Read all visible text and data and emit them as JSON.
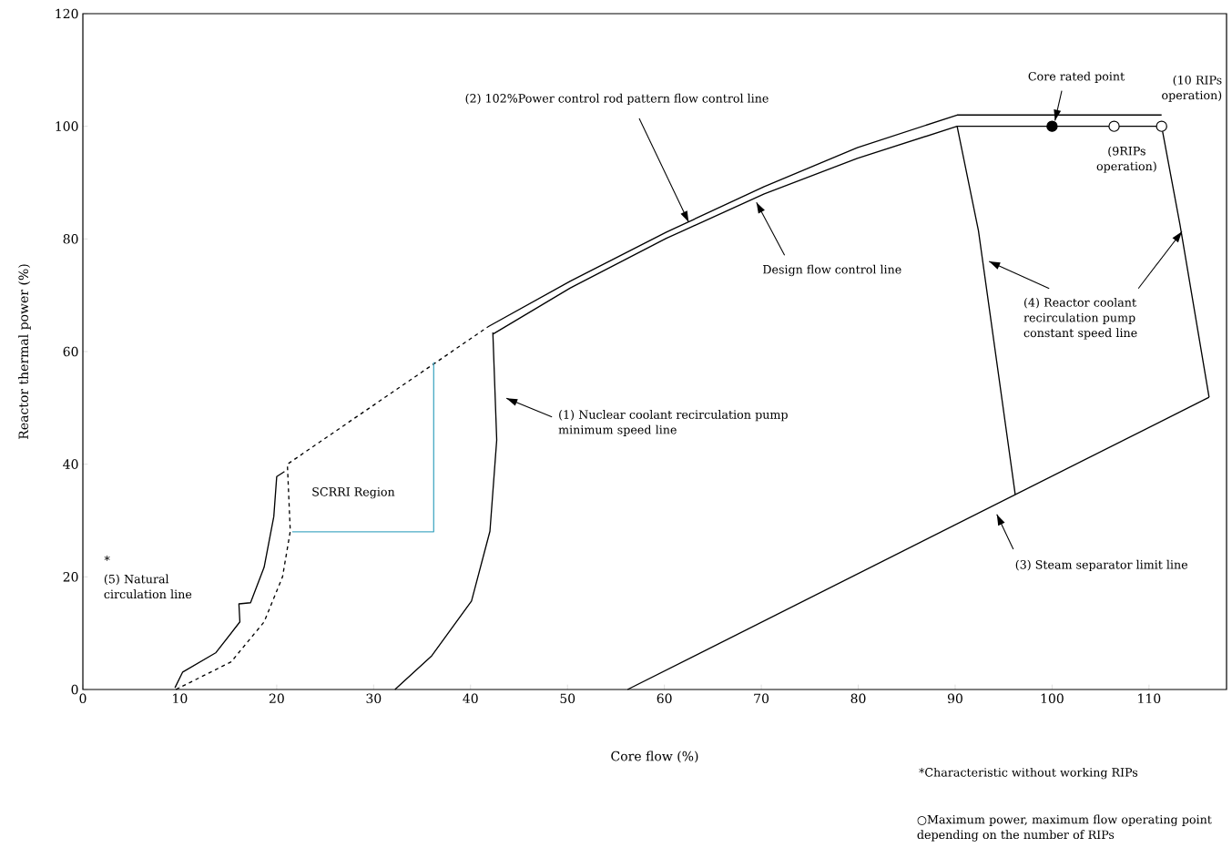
{
  "chart_data": {
    "type": "line",
    "xlabel": "Core flow (%)",
    "ylabel": "Reactor thermal power (%)",
    "xlim": [
      0,
      118
    ],
    "ylim": [
      0,
      120
    ],
    "xticks": [
      0,
      10,
      20,
      30,
      40,
      50,
      60,
      70,
      80,
      90,
      100,
      110
    ],
    "yticks": [
      0,
      20,
      40,
      60,
      80,
      100,
      120
    ],
    "series": [
      {
        "color": "#000000",
        "line_style": "solid",
        "x": [
          41.8,
          50.3,
          60.2,
          70.3,
          79.9,
          90.2,
          111.3
        ],
        "values": [
          64.4,
          72.5,
          81.2,
          89.3,
          96.2,
          102,
          102
        ]
      },
      {
        "color": "#000000",
        "line_style": "solid",
        "x": [
          42.3,
          50.3,
          60.2,
          70.3,
          79.9,
          90.2,
          111.3
        ],
        "values": [
          63.1,
          71.3,
          80.1,
          88,
          94.3,
          100,
          100
        ]
      },
      {
        "color": "#000000",
        "line_style": "dashed",
        "x": [
          9.6,
          15.3,
          18.7,
          20.6,
          21.4,
          21.1,
          41.8
        ],
        "values": [
          0,
          4.9,
          12,
          20,
          28.1,
          40,
          64.4
        ]
      },
      {
        "color": "#000000",
        "line_style": "solid",
        "x": [
          9.5,
          10.3,
          13.7,
          16.2,
          16.1,
          17.3,
          18.7,
          19.7,
          20,
          20.8
        ],
        "values": [
          0.3,
          3.1,
          6.5,
          12,
          15.2,
          15.4,
          21.7,
          30.7,
          37.8,
          38.7
        ]
      },
      {
        "color": "#4bacc6",
        "line_style": "solid",
        "x": [
          21.6,
          36.2,
          36.2
        ],
        "values": [
          28,
          28,
          58.1
        ]
      },
      {
        "color": "#000000",
        "line_style": "solid",
        "x": [
          42.3,
          42.7,
          42,
          40.1,
          36,
          32.2
        ],
        "values": [
          63.4,
          44.3,
          28.1,
          15.7,
          6,
          0
        ]
      },
      {
        "color": "#000000",
        "line_style": "solid",
        "x": [
          56.2,
          96.2,
          116.2
        ],
        "values": [
          0,
          34.6,
          51.9
        ]
      },
      {
        "color": "#000000",
        "line_style": "solid",
        "x": [
          90.2,
          92.4,
          96.2
        ],
        "values": [
          100,
          81.5,
          34.6
        ]
      },
      {
        "color": "#000000",
        "line_style": "solid",
        "x": [
          111.3,
          113.2,
          116.2
        ],
        "values": [
          100,
          82.5,
          51.9
        ]
      },
      {
        "type": "scatter",
        "color": "#000000",
        "marker": "circle",
        "x": [
          100
        ],
        "values": [
          100
        ]
      },
      {
        "type": "scatter",
        "color": "#ffffff",
        "marker": "circle",
        "x": [
          106.4,
          111.3
        ],
        "values": [
          100,
          100
        ]
      }
    ],
    "annotations": [
      {
        "text": "(2) 102%Power control rod pattern flow control line",
        "x": 62.5,
        "y": 83
      },
      "Design flow control line",
      "(1) Nuclear coolant recirculation pump minimum speed line",
      {
        "text": "(4) Reactor coolant recirculation pump constant speed line",
        "x": 113.4,
        "y": 81.3
      },
      "(3) Steam separator limit line",
      {
        "text": "Core rated point",
        "x": 100.3,
        "y": 101
      },
      "(10 RIPs operation)",
      "(9RIPs operation)",
      "*",
      "(5) Natural circulation line",
      "SCRRI Region",
      "*Characteristic without working RIPs",
      "○Maximum power, maximum flow operating point depending on the number of RIPs"
    ]
  }
}
